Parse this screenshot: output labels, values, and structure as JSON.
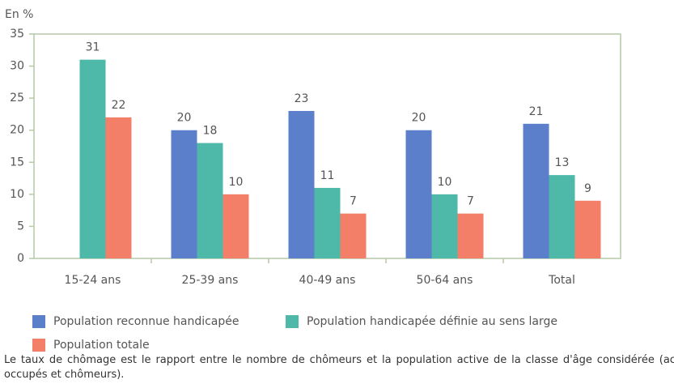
{
  "chart_data": {
    "type": "bar",
    "y_label": "En %",
    "categories": [
      "15-24 ans",
      "25-39 ans",
      "40-49 ans",
      "50-64 ans",
      "Total"
    ],
    "series": [
      {
        "name": "Population reconnue handicapée",
        "color": "#5b7fcb",
        "values": [
          null,
          20,
          23,
          20,
          21
        ]
      },
      {
        "name": "Population handicapée définie au sens large",
        "color": "#4fb9a9",
        "values": [
          31,
          18,
          11,
          10,
          13
        ]
      },
      {
        "name": "Population totale",
        "color": "#f47f68",
        "values": [
          22,
          10,
          7,
          7,
          9
        ]
      }
    ],
    "ylim": [
      0,
      35
    ],
    "yticks": [
      0,
      5,
      10,
      15,
      20,
      25,
      30,
      35
    ],
    "note": "Le taux de chômage est le rapport entre le nombre de chômeurs et la population active de la classe d'âge considérée (actifs occupés et chômeurs)."
  }
}
